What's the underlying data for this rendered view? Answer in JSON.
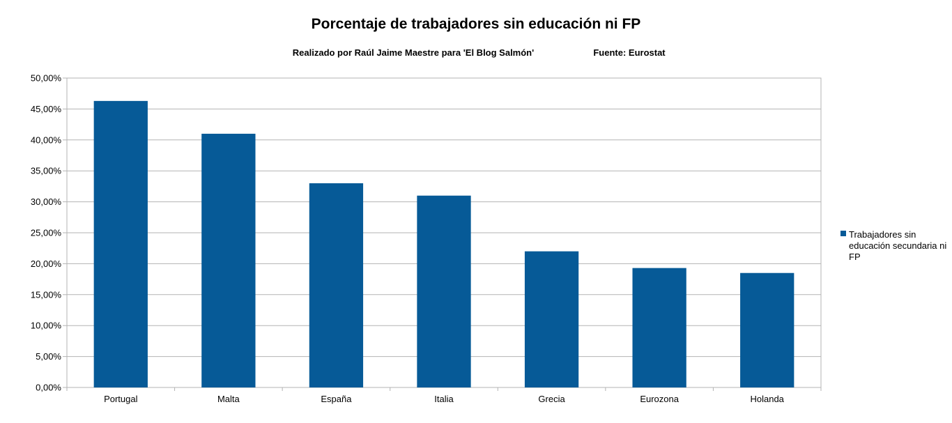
{
  "chart_data": {
    "type": "bar",
    "title": "Porcentaje de trabajadores sin educación ni FP",
    "subtitle": "Realizado por Raúl Jaime Maestre para 'El Blog Salmón'",
    "source": "Fuente: Eurostat",
    "xlabel": "",
    "ylabel": "",
    "categories": [
      "Portugal",
      "Malta",
      "España",
      "Italia",
      "Grecia",
      "Eurozona",
      "Holanda"
    ],
    "series": [
      {
        "name": "Trabajadores sin educación secundaria ni FP",
        "legend_lines": [
          "Trabajadores sin",
          "educación secundaria ni",
          "FP"
        ],
        "values": [
          46.3,
          41.0,
          33.0,
          31.0,
          22.0,
          19.3,
          18.5
        ],
        "color": "#065a97"
      }
    ],
    "ylim": [
      0,
      50
    ],
    "yticks": [
      0,
      5,
      10,
      15,
      20,
      25,
      30,
      35,
      40,
      45,
      50
    ],
    "ytick_labels": [
      "0,00%",
      "5,00%",
      "10,00%",
      "15,00%",
      "20,00%",
      "25,00%",
      "30,00%",
      "35,00%",
      "40,00%",
      "45,00%",
      "50,00%"
    ],
    "grid": true,
    "legend_position": "right"
  }
}
